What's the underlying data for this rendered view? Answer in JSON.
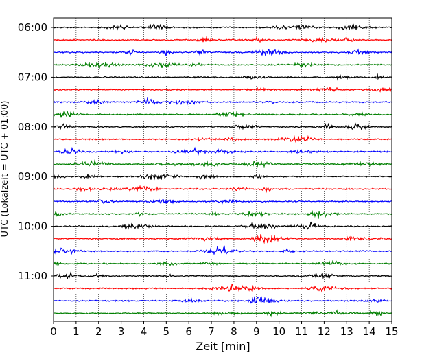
{
  "chart_data": {
    "type": "line",
    "description_type": "helicorder",
    "title": "",
    "xlabel": "Zeit  [min]",
    "ylabel": "UTC (Lokalzeit = UTC + 01:00)",
    "xlim": [
      0,
      15
    ],
    "xticks": [
      0,
      1,
      2,
      3,
      4,
      5,
      6,
      7,
      8,
      9,
      10,
      11,
      12,
      13,
      14,
      15
    ],
    "ytick_labels": [
      "06:00",
      "07:00",
      "08:00",
      "09:00",
      "10:00",
      "11:00"
    ],
    "trace_interval_min": 15,
    "trace_count": 24,
    "trace_colors": [
      "#000000",
      "#ff0000",
      "#0000ff",
      "#007f00"
    ],
    "grid": {
      "vertical_lines": true,
      "style": "dotted"
    },
    "series": [
      {
        "start": "06:00",
        "color": "#000000"
      },
      {
        "start": "06:15",
        "color": "#ff0000"
      },
      {
        "start": "06:30",
        "color": "#0000ff"
      },
      {
        "start": "06:45",
        "color": "#007f00"
      },
      {
        "start": "07:00",
        "color": "#000000"
      },
      {
        "start": "07:15",
        "color": "#ff0000"
      },
      {
        "start": "07:30",
        "color": "#0000ff"
      },
      {
        "start": "07:45",
        "color": "#007f00"
      },
      {
        "start": "08:00",
        "color": "#000000"
      },
      {
        "start": "08:15",
        "color": "#ff0000"
      },
      {
        "start": "08:30",
        "color": "#0000ff"
      },
      {
        "start": "08:45",
        "color": "#007f00"
      },
      {
        "start": "09:00",
        "color": "#000000"
      },
      {
        "start": "09:15",
        "color": "#ff0000"
      },
      {
        "start": "09:30",
        "color": "#0000ff"
      },
      {
        "start": "09:45",
        "color": "#007f00"
      },
      {
        "start": "10:00",
        "color": "#000000"
      },
      {
        "start": "10:15",
        "color": "#ff0000"
      },
      {
        "start": "10:30",
        "color": "#0000ff"
      },
      {
        "start": "10:45",
        "color": "#007f00"
      },
      {
        "start": "11:00",
        "color": "#000000"
      },
      {
        "start": "11:15",
        "color": "#ff0000"
      },
      {
        "start": "11:30",
        "color": "#0000ff"
      },
      {
        "start": "11:45",
        "color": "#007f00"
      }
    ]
  }
}
